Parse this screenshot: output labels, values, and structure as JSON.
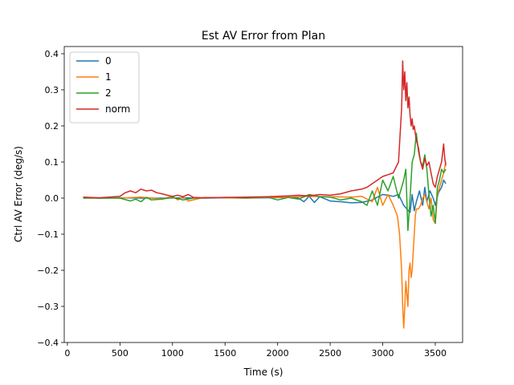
{
  "chart_data": {
    "type": "line",
    "title": "Est AV Error from Plan",
    "xlabel": "Time (s)",
    "ylabel": "Ctrl AV Error (deg/s)",
    "xlim": [
      -30,
      3760
    ],
    "ylim": [
      -0.4,
      0.42
    ],
    "xticks": [
      0,
      500,
      1000,
      1500,
      2000,
      2500,
      3000,
      3500
    ],
    "yticks": [
      -0.4,
      -0.3,
      -0.2,
      -0.1,
      0.0,
      0.1,
      0.2,
      0.3,
      0.4
    ],
    "xtick_labels": [
      "0",
      "500",
      "1000",
      "1500",
      "2000",
      "2500",
      "3000",
      "3500"
    ],
    "ytick_labels": [
      "−0.4",
      "−0.3",
      "−0.2",
      "−0.1",
      "0.0",
      "0.1",
      "0.2",
      "0.3",
      "0.4"
    ],
    "grid": false,
    "legend": "top-left",
    "series": [
      {
        "name": "0",
        "color": "#1f77b4",
        "x": [
          150,
          300,
          500,
          700,
          900,
          1100,
          1300,
          1500,
          1700,
          1900,
          2100,
          2200,
          2250,
          2300,
          2350,
          2400,
          2500,
          2600,
          2700,
          2800,
          2900,
          2950,
          3000,
          3050,
          3100,
          3150,
          3200,
          3230,
          3260,
          3280,
          3300,
          3320,
          3350,
          3380,
          3400,
          3420,
          3450,
          3480,
          3500,
          3530,
          3560,
          3580,
          3600
        ],
        "y": [
          0.002,
          0.0,
          0.001,
          0.0,
          0.0,
          0.001,
          0.0,
          0.001,
          0.0,
          0.001,
          0.002,
          0.0,
          -0.01,
          0.005,
          -0.012,
          0.004,
          -0.008,
          -0.01,
          -0.013,
          -0.012,
          -0.005,
          0.003,
          0.01,
          0.008,
          0.005,
          0.01,
          -0.02,
          -0.03,
          -0.04,
          0.01,
          -0.035,
          -0.01,
          0.02,
          -0.02,
          0.03,
          -0.01,
          0.02,
          0.0,
          -0.02,
          0.015,
          0.03,
          0.05,
          0.04
        ]
      },
      {
        "name": "1",
        "color": "#ff7f0e",
        "x": [
          150,
          300,
          500,
          700,
          900,
          1000,
          1050,
          1100,
          1150,
          1300,
          1500,
          1700,
          1900,
          2100,
          2300,
          2500,
          2700,
          2800,
          2900,
          2950,
          3000,
          3050,
          3100,
          3140,
          3160,
          3180,
          3190,
          3200,
          3210,
          3220,
          3240,
          3250,
          3260,
          3270,
          3280,
          3290,
          3300,
          3310,
          3320,
          3340,
          3360,
          3380,
          3400,
          3420,
          3440,
          3460,
          3480,
          3500,
          3520,
          3540,
          3560,
          3580,
          3600
        ],
        "y": [
          0.002,
          0.001,
          0.0,
          0.003,
          -0.002,
          0.005,
          -0.005,
          0.004,
          -0.008,
          0.002,
          0.001,
          0.0,
          0.002,
          0.003,
          0.005,
          0.004,
          0.003,
          0.005,
          -0.01,
          0.03,
          -0.02,
          0.01,
          -0.02,
          -0.05,
          -0.1,
          -0.2,
          -0.3,
          -0.36,
          -0.3,
          -0.23,
          -0.3,
          -0.2,
          -0.18,
          -0.22,
          -0.2,
          -0.15,
          -0.1,
          -0.05,
          -0.03,
          -0.03,
          -0.02,
          0.0,
          0.01,
          -0.01,
          -0.03,
          0.0,
          -0.06,
          -0.07,
          0.01,
          0.03,
          0.05,
          0.07,
          0.1
        ]
      },
      {
        "name": "2",
        "color": "#2ca02c",
        "x": [
          150,
          300,
          500,
          600,
          650,
          700,
          750,
          800,
          900,
          1000,
          1100,
          1200,
          1300,
          1500,
          1700,
          1900,
          2000,
          2100,
          2200,
          2300,
          2400,
          2500,
          2600,
          2700,
          2800,
          2850,
          2900,
          2950,
          3000,
          3050,
          3100,
          3150,
          3200,
          3220,
          3240,
          3260,
          3280,
          3300,
          3320,
          3340,
          3360,
          3380,
          3400,
          3420,
          3440,
          3460,
          3480,
          3500,
          3520,
          3540,
          3560,
          3580,
          3600
        ],
        "y": [
          0.0,
          0.0,
          0.0,
          -0.008,
          -0.003,
          -0.01,
          0.002,
          -0.005,
          -0.003,
          0.002,
          -0.005,
          0.0,
          0.001,
          0.002,
          0.001,
          0.003,
          -0.005,
          0.002,
          -0.003,
          0.01,
          0.004,
          0.003,
          -0.005,
          0.0,
          -0.01,
          -0.02,
          0.02,
          -0.02,
          0.05,
          0.02,
          0.06,
          0.0,
          0.05,
          0.08,
          -0.09,
          0.0,
          0.1,
          0.12,
          0.18,
          0.13,
          0.1,
          0.09,
          0.12,
          0.08,
          0.01,
          -0.05,
          -0.02,
          -0.07,
          0.03,
          0.05,
          0.08,
          0.07,
          0.08
        ]
      },
      {
        "name": "norm",
        "color": "#d62728",
        "x": [
          150,
          300,
          500,
          550,
          600,
          650,
          700,
          750,
          800,
          850,
          900,
          950,
          1000,
          1050,
          1100,
          1150,
          1200,
          1300,
          1500,
          1700,
          1900,
          2000,
          2100,
          2200,
          2300,
          2400,
          2500,
          2600,
          2700,
          2800,
          2850,
          2900,
          2950,
          3000,
          3050,
          3100,
          3150,
          3180,
          3190,
          3200,
          3210,
          3220,
          3230,
          3240,
          3250,
          3260,
          3270,
          3280,
          3290,
          3300,
          3320,
          3340,
          3360,
          3380,
          3400,
          3420,
          3440,
          3460,
          3480,
          3500,
          3520,
          3540,
          3560,
          3580,
          3590,
          3600
        ],
        "y": [
          0.003,
          0.001,
          0.005,
          0.015,
          0.02,
          0.015,
          0.025,
          0.02,
          0.022,
          0.015,
          0.012,
          0.008,
          0.005,
          0.008,
          0.004,
          0.01,
          0.002,
          0.001,
          0.002,
          0.003,
          0.004,
          0.005,
          0.006,
          0.008,
          0.006,
          0.01,
          0.008,
          0.012,
          0.02,
          0.025,
          0.03,
          0.04,
          0.05,
          0.06,
          0.065,
          0.07,
          0.1,
          0.25,
          0.38,
          0.3,
          0.35,
          0.27,
          0.32,
          0.25,
          0.28,
          0.23,
          0.2,
          0.22,
          0.19,
          0.2,
          0.16,
          0.14,
          0.1,
          0.08,
          0.11,
          0.09,
          0.1,
          0.07,
          0.04,
          0.03,
          0.06,
          0.08,
          0.1,
          0.15,
          0.11,
          0.09
        ]
      }
    ]
  }
}
